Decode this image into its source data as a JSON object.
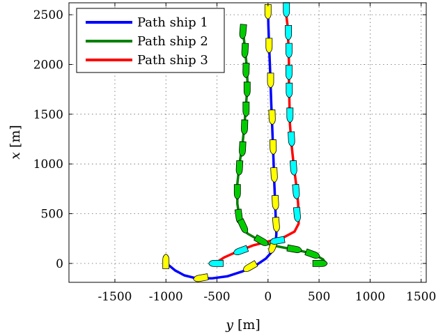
{
  "chart_data": {
    "type": "line",
    "title": "",
    "xlabel_var": "y",
    "xlabel_unit": "[m]",
    "ylabel_var": "x",
    "ylabel_unit": "[m]",
    "xlim": [
      -1950,
      1550
    ],
    "ylim": [
      -190,
      2620
    ],
    "xticks": [
      -1500,
      -1000,
      -500,
      0,
      500,
      1000,
      1500
    ],
    "yticks": [
      0,
      500,
      1000,
      1500,
      2000,
      2500
    ],
    "grid": true,
    "legend_position": "top-left",
    "series": [
      {
        "name": "Path ship 1",
        "color": "#0000ff",
        "ship_color": "#ffff00",
        "points": [
          [
            0,
            2570
          ],
          [
            3,
            2400
          ],
          [
            10,
            2200
          ],
          [
            18,
            2000
          ],
          [
            25,
            1800
          ],
          [
            32,
            1600
          ],
          [
            40,
            1400
          ],
          [
            48,
            1200
          ],
          [
            55,
            1000
          ],
          [
            62,
            800
          ],
          [
            70,
            600
          ],
          [
            78,
            400
          ],
          [
            82,
            300
          ],
          [
            75,
            200
          ],
          [
            40,
            120
          ],
          [
            -20,
            50
          ],
          [
            -120,
            -20
          ],
          [
            -250,
            -80
          ],
          [
            -400,
            -130
          ],
          [
            -550,
            -150
          ],
          [
            -700,
            -150
          ],
          [
            -820,
            -120
          ],
          [
            -910,
            -70
          ],
          [
            -970,
            -20
          ],
          [
            -990,
            0
          ]
        ],
        "ships": [
          [
            0,
            2540,
            180
          ],
          [
            10,
            2200,
            180
          ],
          [
            25,
            1850,
            180
          ],
          [
            40,
            1480,
            178
          ],
          [
            50,
            1180,
            178
          ],
          [
            60,
            900,
            177
          ],
          [
            72,
            620,
            177
          ],
          [
            80,
            400,
            175
          ],
          [
            50,
            180,
            200
          ],
          [
            -170,
            -30,
            240
          ],
          [
            -650,
            -145,
            260
          ],
          [
            -1000,
            10,
            0
          ]
        ]
      },
      {
        "name": "Path ship 2",
        "color": "#008000",
        "ship_color": "#00cc00",
        "points": [
          [
            -250,
            2380
          ],
          [
            -230,
            2200
          ],
          [
            -210,
            2000
          ],
          [
            -200,
            1800
          ],
          [
            -215,
            1600
          ],
          [
            -230,
            1400
          ],
          [
            -250,
            1200
          ],
          [
            -280,
            1000
          ],
          [
            -300,
            800
          ],
          [
            -300,
            600
          ],
          [
            -270,
            400
          ],
          [
            -200,
            300
          ],
          [
            -80,
            230
          ],
          [
            50,
            180
          ],
          [
            200,
            150
          ],
          [
            350,
            120
          ],
          [
            470,
            80
          ],
          [
            540,
            40
          ],
          [
            560,
            0
          ]
        ],
        "ships": [
          [
            -245,
            2340,
            185
          ],
          [
            -225,
            2150,
            183
          ],
          [
            -215,
            1950,
            181
          ],
          [
            -205,
            1760,
            180
          ],
          [
            -215,
            1560,
            180
          ],
          [
            -230,
            1380,
            182
          ],
          [
            -250,
            1160,
            183
          ],
          [
            -280,
            970,
            183
          ],
          [
            -300,
            730,
            180
          ],
          [
            -285,
            480,
            172
          ],
          [
            -245,
            380,
            155
          ],
          [
            -70,
            230,
            120
          ],
          [
            250,
            145,
            100
          ],
          [
            430,
            95,
            110
          ],
          [
            500,
            0,
            90
          ]
        ]
      },
      {
        "name": "Path ship 3",
        "color": "#ff0000",
        "ship_color": "#00ffff",
        "points": [
          [
            170,
            2570
          ],
          [
            190,
            2400
          ],
          [
            200,
            2200
          ],
          [
            205,
            2000
          ],
          [
            205,
            1800
          ],
          [
            210,
            1600
          ],
          [
            215,
            1400
          ],
          [
            230,
            1200
          ],
          [
            250,
            1000
          ],
          [
            275,
            800
          ],
          [
            295,
            600
          ],
          [
            300,
            400
          ],
          [
            260,
            320
          ],
          [
            150,
            260
          ],
          [
            0,
            220
          ],
          [
            -150,
            180
          ],
          [
            -300,
            120
          ],
          [
            -430,
            60
          ],
          [
            -520,
            0
          ]
        ],
        "ships": [
          [
            180,
            2560,
            180
          ],
          [
            200,
            2330,
            180
          ],
          [
            205,
            2150,
            180
          ],
          [
            205,
            1930,
            180
          ],
          [
            208,
            1750,
            180
          ],
          [
            215,
            1500,
            180
          ],
          [
            230,
            1260,
            177
          ],
          [
            250,
            970,
            176
          ],
          [
            275,
            730,
            175
          ],
          [
            285,
            500,
            175
          ],
          [
            100,
            230,
            260
          ],
          [
            -260,
            130,
            250
          ],
          [
            -500,
            0,
            270
          ]
        ]
      }
    ]
  }
}
